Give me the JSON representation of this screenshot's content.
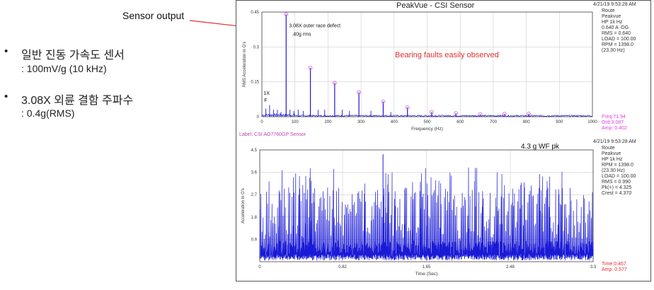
{
  "left_panel": {
    "sensor_callout": "Sensor output",
    "bullets": [
      {
        "line1": "일반 진동 가속도 센서",
        "line2": ": 100mV/g (10 kHz)"
      },
      {
        "line1": "3.08X 외륜 결함 주파수",
        "line2": ": 0.4g(RMS)"
      }
    ],
    "bullet_char": "•"
  },
  "colors": {
    "trace": "#1a1ad6",
    "markers": "#e060e0",
    "red": "#e03030",
    "frame": "#555555",
    "grid": "#cfcfcf"
  },
  "chart_data": [
    {
      "type": "line",
      "title": "PeakVue - CSI Sensor",
      "timestamp": "4/21/19 9:53:28 AM",
      "xlabel": "Frequency (Hz)",
      "ylabel": "RMS Acceleration in G's",
      "xlim": [
        0,
        1000
      ],
      "ylim": [
        0,
        0.45
      ],
      "xticks": [
        "0",
        "100",
        "200",
        "300",
        "400",
        "500",
        "600",
        "700",
        "800",
        "900",
        "1000"
      ],
      "yticks": [
        "0",
        "0.15",
        "0.3",
        "0.45"
      ],
      "harmonic_peaks": [
        {
          "x": 73.4,
          "y": 0.44
        },
        {
          "x": 146.8,
          "y": 0.21
        },
        {
          "x": 220.2,
          "y": 0.145
        },
        {
          "x": 293.6,
          "y": 0.105
        },
        {
          "x": 367,
          "y": 0.065
        },
        {
          "x": 440.4,
          "y": 0.04
        },
        {
          "x": 513.8,
          "y": 0.02
        },
        {
          "x": 587.2,
          "y": 0.015
        },
        {
          "x": 660.6,
          "y": 0.01
        },
        {
          "x": 734,
          "y": 0.012
        },
        {
          "x": 807.4,
          "y": 0.013
        }
      ],
      "annotations": {
        "defect": "3.08X outer race defect",
        "defect_value": ".40g rms",
        "fault_note": "Bearing faults easily observed",
        "one_x": "1X",
        "one_x_sub": "F"
      },
      "info": "Route\nPeakvue\nHP 1k Hz\n0.640 A -DG\nRMS = 0.640\nLOAD = 100.00\nRPM = 1398.0\n(23.30 Hz)",
      "readout": "Freq:71.94\nOrd:3.087\nAmp: 0.402",
      "label": "Label:  CSI AO7760GP Sensor"
    },
    {
      "type": "line",
      "timestamp": "4/21/19 9:53:28 AM",
      "xlabel": "Time (Sec)",
      "ylabel": "Acceleration in G's",
      "xlim": [
        0,
        3.3
      ],
      "ylim": [
        0,
        4.5
      ],
      "xticks": [
        "0",
        "0.82",
        "1.65",
        "2.48",
        "3.3"
      ],
      "yticks": [
        "0.9",
        "1.8",
        "2.7",
        "3.6",
        "4.5"
      ],
      "annotation": "4.3 g WF pk",
      "peak": 4.325,
      "info": "Route\nPeakvue\nHP 1k Hz\nRPM = 1398.0\n(23.30 Hz)\nLOAD = 100.00\nRMS = 0.990\nPk(+) = 4.325\nCrest = 4.370",
      "readout": "Time:0.467\nAmp: 0.577"
    }
  ]
}
